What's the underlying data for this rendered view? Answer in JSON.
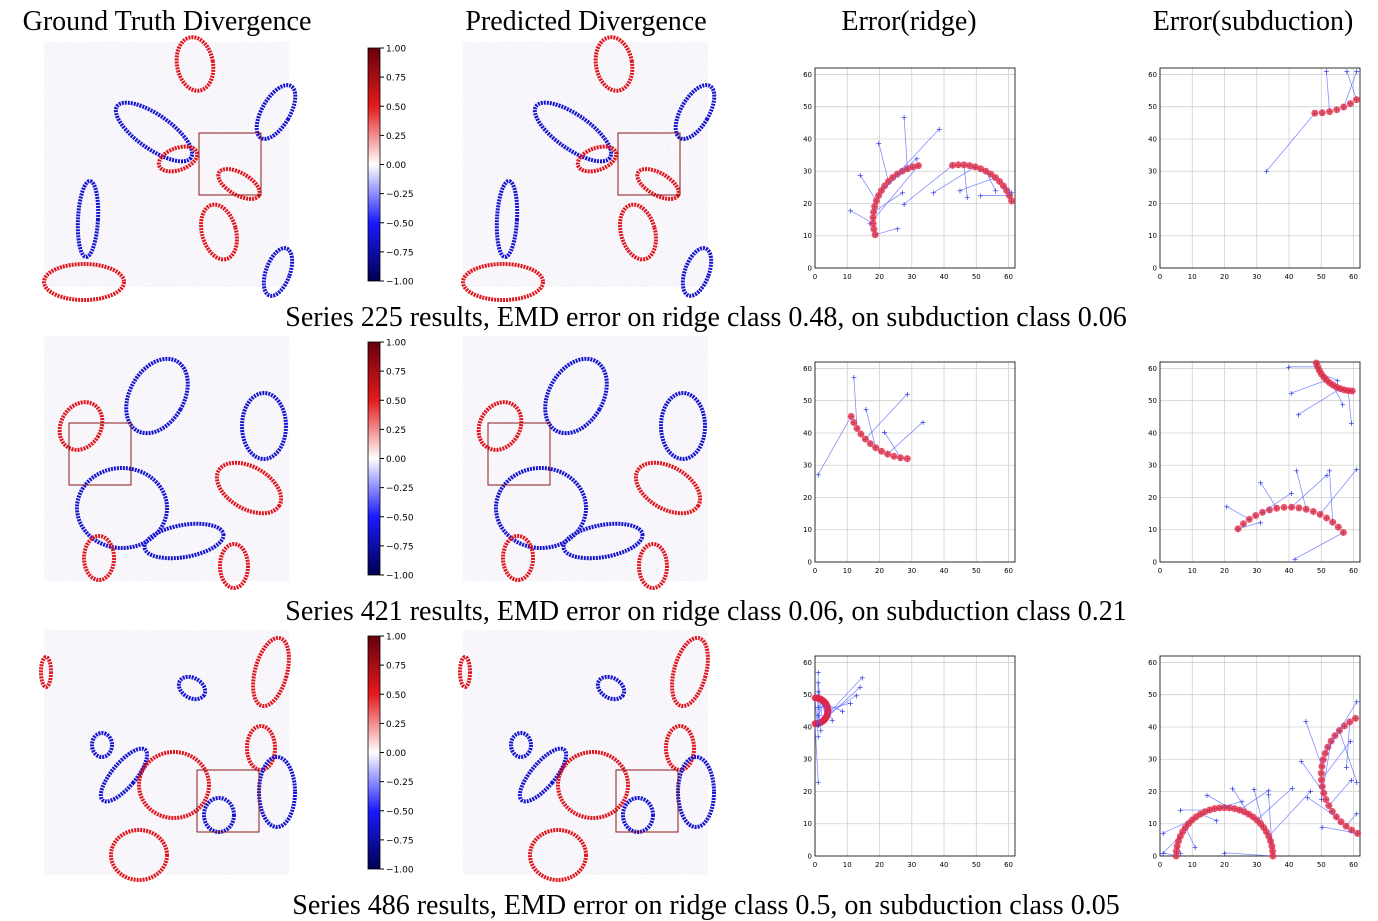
{
  "headers": [
    "Ground Truth Divergence",
    "Predicted Divergence",
    "Error(ridge)",
    "Error(subduction)"
  ],
  "colorbar_ticks": [
    {
      "value": 1,
      "label": "1.00"
    },
    {
      "value": 0.75,
      "label": "0.75"
    },
    {
      "value": 0.5,
      "label": "0.50"
    },
    {
      "value": 0.25,
      "label": "0.25"
    },
    {
      "value": 0,
      "label": "0.00"
    },
    {
      "value": -0.25,
      "label": "−0.25"
    },
    {
      "value": -0.5,
      "label": "−0.50"
    },
    {
      "value": -0.75,
      "label": "−0.75"
    },
    {
      "value": -1,
      "label": "−1.00"
    }
  ],
  "plot_lim": [
    0,
    62
  ],
  "plot_ticks": [
    0,
    10,
    20,
    30,
    40,
    50,
    60
  ],
  "rows": [
    {
      "caption": "Series 225 results, EMD error on ridge class 0.48, on subduction class 0.06"
    },
    {
      "caption": "Series 421 results, EMD error on ridge class 0.06, on subduction class 0.21"
    },
    {
      "caption": "Series 486 results, EMD error on ridge class 0.5, on subduction class 0.05"
    }
  ]
}
